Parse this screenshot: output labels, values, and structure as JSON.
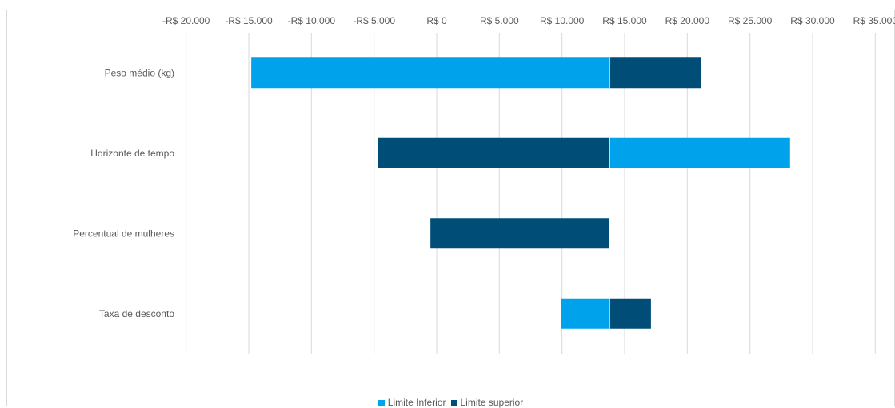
{
  "chart_data": {
    "type": "bar",
    "orientation": "horizontal",
    "subtype": "tornado",
    "title": "",
    "xlabel": "",
    "ylabel": "",
    "xlim": [
      -20000,
      35000
    ],
    "base": 13800,
    "x_ticks": [
      -20000,
      -15000,
      -10000,
      -5000,
      0,
      5000,
      10000,
      15000,
      20000,
      25000,
      30000,
      35000
    ],
    "x_tick_labels": [
      "-R$ 20.000",
      "-R$ 15.000",
      "-R$ 10.000",
      "-R$ 5.000",
      "R$ 0",
      "R$ 5.000",
      "R$ 10.000",
      "R$ 15.000",
      "R$ 20.000",
      "R$ 25.000",
      "R$ 30.000",
      "R$ 35.000"
    ],
    "x_axis_position": "top",
    "grid": "vertical",
    "legend_position": "bottom",
    "categories": [
      "Peso médio (kg)",
      "Horizonte de tempo",
      "Percentual de mulheres",
      "Taxa de desconto"
    ],
    "series": [
      {
        "name": "Limite Inferior",
        "color": "#00A2EC",
        "values": [
          -14800,
          28200,
          null,
          9900
        ]
      },
      {
        "name": "Limite superior",
        "color": "#004E78",
        "values": [
          21100,
          -4700,
          -500,
          17100
        ]
      }
    ]
  }
}
